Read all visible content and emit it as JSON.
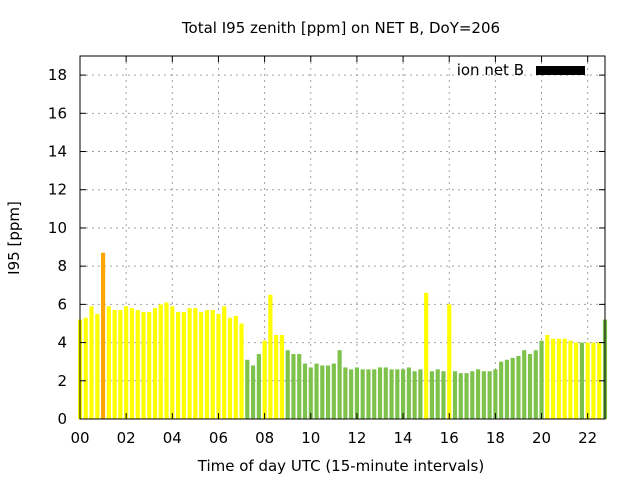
{
  "chart_data": {
    "type": "bar",
    "title": "Total I95 zenith [ppm] on NET B, DoY=206",
    "xlabel": "Time of day UTC (15-minute intervals)",
    "ylabel": "I95 [ppm]",
    "xlim": [
      0,
      22.75
    ],
    "ylim": [
      0,
      19
    ],
    "x_ticks": [
      "00",
      "02",
      "04",
      "06",
      "08",
      "10",
      "12",
      "14",
      "16",
      "18",
      "20",
      "22"
    ],
    "y_ticks": [
      "0",
      "2",
      "4",
      "6",
      "8",
      "10",
      "12",
      "14",
      "16",
      "18"
    ],
    "grid": true,
    "legend": {
      "label": "ion net B",
      "color": "#000000",
      "placement": "top-right"
    },
    "interval_hours": 0.25,
    "colors": {
      "Y": "#ffff00",
      "O": "#ffa500",
      "G": "#7dc24b"
    },
    "values": [
      5.2,
      5.3,
      5.9,
      5.5,
      8.7,
      5.9,
      5.7,
      5.7,
      5.9,
      5.8,
      5.7,
      5.6,
      5.6,
      5.8,
      6.0,
      6.1,
      5.9,
      5.6,
      5.6,
      5.8,
      5.8,
      5.6,
      5.7,
      5.7,
      5.5,
      5.9,
      5.3,
      5.4,
      5.0,
      3.1,
      2.8,
      3.4,
      4.1,
      6.5,
      4.4,
      4.4,
      3.6,
      3.4,
      3.4,
      2.9,
      2.7,
      2.9,
      2.8,
      2.8,
      2.9,
      3.6,
      2.7,
      2.6,
      2.7,
      2.6,
      2.6,
      2.6,
      2.7,
      2.7,
      2.6,
      2.6,
      2.6,
      2.7,
      2.5,
      2.6,
      6.6,
      2.5,
      2.6,
      2.5,
      6.0,
      2.5,
      2.4,
      2.4,
      2.5,
      2.6,
      2.5,
      2.5,
      2.6,
      3.0,
      3.1,
      3.2,
      3.3,
      3.6,
      3.4,
      3.6,
      4.1,
      4.4,
      4.2,
      4.2,
      4.2,
      4.1,
      4.0,
      4.0,
      4.0,
      4.0,
      4.0,
      5.2
    ],
    "bar_colors": "YYYYOYYYYYYYYYYYYYYYYYYYYYYYYGGGYYYYGGGGGGGGGGGGGGGGGGGGGGGGYGGGYGGGGGGGGGGGGGGGGYYYYYYGYYYGY"
  }
}
